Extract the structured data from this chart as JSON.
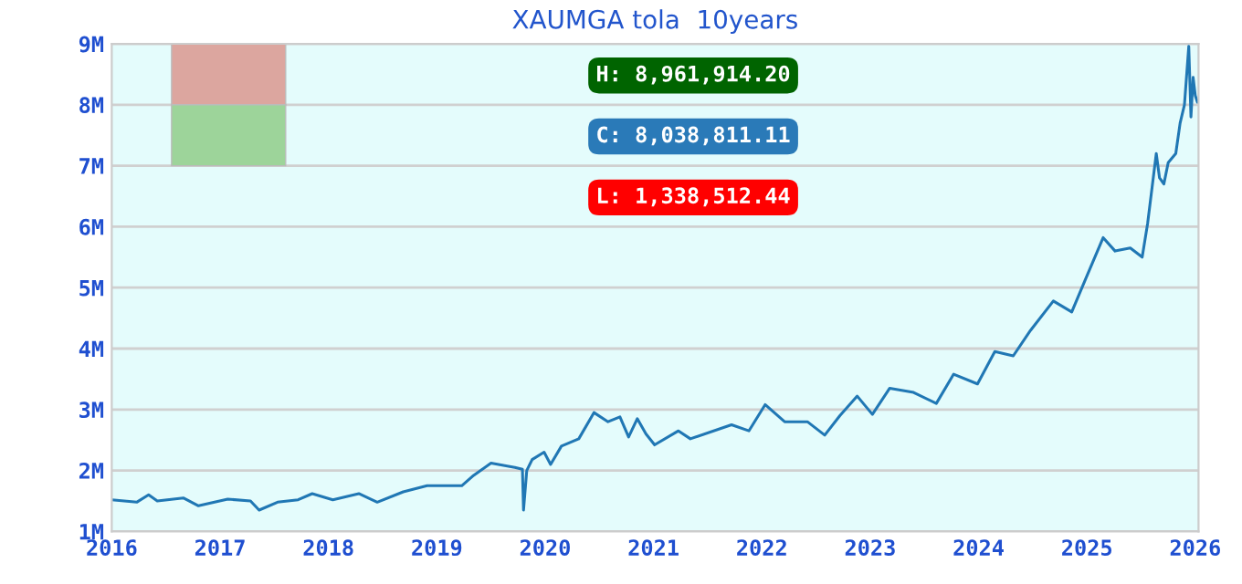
{
  "chart_data": {
    "type": "line",
    "title": "XAUMGA tola  10years",
    "series": [
      {
        "color": "#2077b4",
        "x": [
          2016.0,
          2016.23,
          2016.34,
          2016.42,
          2016.66,
          2016.8,
          2017.07,
          2017.28,
          2017.36,
          2017.53,
          2017.72,
          2017.85,
          2018.04,
          2018.28,
          2018.45,
          2018.69,
          2018.91,
          2019.23,
          2019.34,
          2019.5,
          2019.72,
          2019.79,
          2019.8,
          2019.83,
          2019.88,
          2019.99,
          2020.05,
          2020.15,
          2020.31,
          2020.45,
          2020.58,
          2020.69,
          2020.77,
          2020.85,
          2020.93,
          2021.01,
          2021.23,
          2021.34,
          2021.72,
          2021.88,
          2022.03,
          2022.21,
          2022.42,
          2022.58,
          2022.72,
          2022.88,
          2023.02,
          2023.18,
          2023.4,
          2023.61,
          2023.77,
          2023.99,
          2024.15,
          2024.32,
          2024.48,
          2024.69,
          2024.86,
          2024.99,
          2025.15,
          2025.26,
          2025.4,
          2025.51,
          2025.56,
          2025.64,
          2025.67,
          2025.71,
          2025.75,
          2025.82,
          2025.86,
          2025.9,
          2025.94,
          2025.96,
          2025.98,
          2026.0,
          2026.02
        ],
        "values": [
          1520000,
          1480000,
          1600000,
          1500000,
          1550000,
          1420000,
          1530000,
          1500000,
          1350000,
          1480000,
          1520000,
          1620000,
          1520000,
          1620000,
          1480000,
          1650000,
          1750000,
          1750000,
          1920000,
          2120000,
          2050000,
          2020000,
          1350000,
          2000000,
          2180000,
          2300000,
          2100000,
          2400000,
          2520000,
          2950000,
          2800000,
          2880000,
          2550000,
          2850000,
          2600000,
          2420000,
          2650000,
          2520000,
          2750000,
          2650000,
          3080000,
          2800000,
          2800000,
          2580000,
          2900000,
          3220000,
          2920000,
          3350000,
          3280000,
          3100000,
          3580000,
          3420000,
          3950000,
          3880000,
          4300000,
          4780000,
          4600000,
          5150000,
          5820000,
          5600000,
          5650000,
          5500000,
          6050000,
          7200000,
          6800000,
          6700000,
          7050000,
          7200000,
          7700000,
          8000000,
          8960000,
          7800000,
          8450000,
          8150000,
          8040000
        ]
      }
    ],
    "xlim": [
      2016,
      2026.03
    ],
    "xticks": [
      2016,
      2017,
      2018,
      2019,
      2020,
      2021,
      2022,
      2023,
      2024,
      2025,
      2026
    ],
    "ylim": [
      1000000,
      9000000
    ],
    "yticks": [
      {
        "value": 1000000,
        "label": "1M"
      },
      {
        "value": 2000000,
        "label": "2M"
      },
      {
        "value": 3000000,
        "label": "3M"
      },
      {
        "value": 4000000,
        "label": "4M"
      },
      {
        "value": 5000000,
        "label": "5M"
      },
      {
        "value": 6000000,
        "label": "6M"
      },
      {
        "value": 7000000,
        "label": "7M"
      },
      {
        "value": 8000000,
        "label": "8M"
      },
      {
        "value": 9000000,
        "label": "9M"
      }
    ],
    "grid": "y",
    "annotations": [
      "H: 8,961,914.20",
      "C: 8,038,811.11",
      "L: 1,338,512.44"
    ]
  }
}
